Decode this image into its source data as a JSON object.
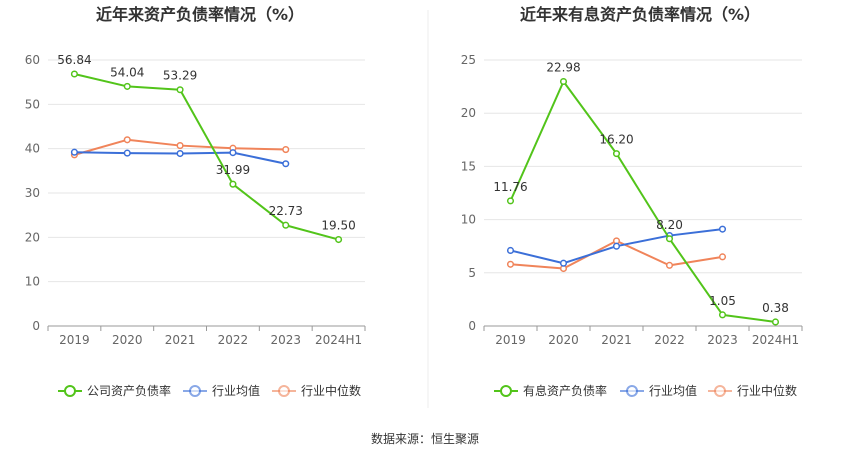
{
  "source": "数据来源：恒生聚源",
  "colors": {
    "primary": "#52c41a",
    "industry_avg": "#3b6fd8",
    "industry_median": "#f0845a",
    "grid": "#e6e6e6",
    "axis": "#999999"
  },
  "chart_data": [
    {
      "type": "line",
      "title": "近年来资产负债率情况（%）",
      "categories": [
        "2019",
        "2020",
        "2021",
        "2022",
        "2023",
        "2024H1"
      ],
      "ylim": [
        0,
        60
      ],
      "yticks": [
        0,
        10,
        20,
        30,
        40,
        50,
        60
      ],
      "grid": true,
      "legend_position": "bottom",
      "series": [
        {
          "name": "公司资产负债率",
          "color": "#52c41a",
          "values": [
            56.84,
            54.04,
            53.29,
            31.99,
            22.73,
            19.5
          ],
          "labels": [
            "56.84",
            "54.04",
            "53.29",
            "31.99",
            "22.73",
            "19.50"
          ]
        },
        {
          "name": "行业均值",
          "color": "#3b6fd8",
          "values": [
            39.2,
            39.0,
            38.9,
            39.1,
            36.6,
            null
          ]
        },
        {
          "name": "行业中位数",
          "color": "#f0845a",
          "values": [
            38.6,
            42.0,
            40.7,
            40.1,
            39.8,
            null
          ]
        }
      ]
    },
    {
      "type": "line",
      "title": "近年来有息资产负债率情况（%）",
      "categories": [
        "2019",
        "2020",
        "2021",
        "2022",
        "2023",
        "2024H1"
      ],
      "ylim": [
        0,
        25
      ],
      "yticks": [
        0,
        5,
        10,
        15,
        20,
        25
      ],
      "grid": true,
      "legend_position": "bottom",
      "series": [
        {
          "name": "有息资产负债率",
          "color": "#52c41a",
          "values": [
            11.76,
            22.98,
            16.2,
            8.2,
            1.05,
            0.38
          ],
          "labels": [
            "11.76",
            "22.98",
            "16.20",
            "8.20",
            "1.05",
            "0.38"
          ]
        },
        {
          "name": "行业均值",
          "color": "#3b6fd8",
          "values": [
            7.1,
            5.9,
            7.5,
            8.5,
            9.1,
            null
          ]
        },
        {
          "name": "行业中位数",
          "color": "#f0845a",
          "values": [
            5.8,
            5.4,
            8.0,
            5.7,
            6.5,
            null
          ]
        }
      ]
    }
  ]
}
